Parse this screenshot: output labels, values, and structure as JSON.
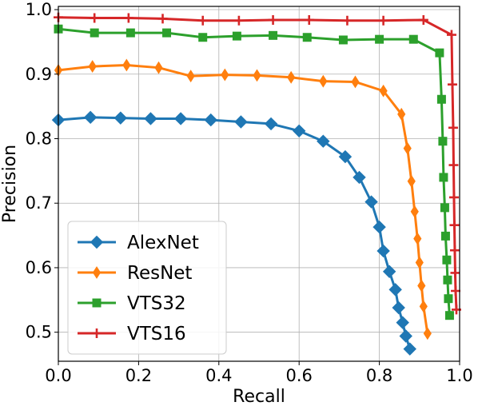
{
  "chart_data": {
    "type": "line",
    "title": "",
    "xlabel": "Recall",
    "ylabel": "Precision",
    "xlim": [
      0.0,
      1.0
    ],
    "ylim": [
      0.455,
      1.005
    ],
    "xticks": [
      0.0,
      0.2,
      0.4,
      0.6,
      0.8,
      1.0
    ],
    "xtick_labels": [
      "0.0",
      "0.2",
      "0.4",
      "0.6",
      "0.8",
      "1.0"
    ],
    "yticks": [
      0.5,
      0.6,
      0.7,
      0.8,
      0.9,
      1.0
    ],
    "ytick_labels": [
      "0.5",
      "0.6",
      "0.7",
      "0.8",
      "0.9",
      "1.0"
    ],
    "grid": true,
    "legend_position": "lower-left",
    "series": [
      {
        "name": "AlexNet",
        "color": "#1f77b4",
        "marker": "diamond",
        "points": [
          [
            0.0,
            0.829
          ],
          [
            0.08,
            0.833
          ],
          [
            0.155,
            0.832
          ],
          [
            0.23,
            0.831
          ],
          [
            0.305,
            0.831
          ],
          [
            0.38,
            0.829
          ],
          [
            0.455,
            0.826
          ],
          [
            0.53,
            0.823
          ],
          [
            0.6,
            0.812
          ],
          [
            0.66,
            0.796
          ],
          [
            0.715,
            0.772
          ],
          [
            0.75,
            0.74
          ],
          [
            0.78,
            0.702
          ],
          [
            0.8,
            0.663
          ],
          [
            0.81,
            0.626
          ],
          [
            0.825,
            0.594
          ],
          [
            0.84,
            0.566
          ],
          [
            0.848,
            0.538
          ],
          [
            0.858,
            0.515
          ],
          [
            0.866,
            0.494
          ],
          [
            0.876,
            0.474
          ]
        ]
      },
      {
        "name": "ResNet",
        "color": "#ff7f0e",
        "marker": "thin-diamond",
        "points": [
          [
            0.0,
            0.906
          ],
          [
            0.085,
            0.912
          ],
          [
            0.17,
            0.914
          ],
          [
            0.25,
            0.91
          ],
          [
            0.33,
            0.897
          ],
          [
            0.415,
            0.899
          ],
          [
            0.495,
            0.898
          ],
          [
            0.58,
            0.895
          ],
          [
            0.66,
            0.889
          ],
          [
            0.74,
            0.888
          ],
          [
            0.81,
            0.874
          ],
          [
            0.855,
            0.838
          ],
          [
            0.87,
            0.785
          ],
          [
            0.88,
            0.734
          ],
          [
            0.888,
            0.687
          ],
          [
            0.895,
            0.645
          ],
          [
            0.9,
            0.608
          ],
          [
            0.905,
            0.572
          ],
          [
            0.91,
            0.54
          ],
          [
            0.92,
            0.498
          ]
        ]
      },
      {
        "name": "VTS32",
        "color": "#2ca02c",
        "marker": "square",
        "points": [
          [
            0.0,
            0.97
          ],
          [
            0.09,
            0.964
          ],
          [
            0.18,
            0.964
          ],
          [
            0.27,
            0.964
          ],
          [
            0.36,
            0.957
          ],
          [
            0.445,
            0.959
          ],
          [
            0.535,
            0.96
          ],
          [
            0.62,
            0.957
          ],
          [
            0.71,
            0.953
          ],
          [
            0.8,
            0.954
          ],
          [
            0.885,
            0.954
          ],
          [
            0.95,
            0.933
          ],
          [
            0.955,
            0.861
          ],
          [
            0.958,
            0.796
          ],
          [
            0.96,
            0.74
          ],
          [
            0.963,
            0.693
          ],
          [
            0.965,
            0.649
          ],
          [
            0.968,
            0.612
          ],
          [
            0.97,
            0.581
          ],
          [
            0.972,
            0.552
          ],
          [
            0.975,
            0.526
          ]
        ]
      },
      {
        "name": "VTS16",
        "color": "#d62728",
        "marker": "plus",
        "points": [
          [
            0.0,
            0.988
          ],
          [
            0.09,
            0.987
          ],
          [
            0.175,
            0.987
          ],
          [
            0.26,
            0.986
          ],
          [
            0.36,
            0.983
          ],
          [
            0.45,
            0.983
          ],
          [
            0.535,
            0.984
          ],
          [
            0.625,
            0.984
          ],
          [
            0.72,
            0.983
          ],
          [
            0.81,
            0.983
          ],
          [
            0.91,
            0.984
          ],
          [
            0.98,
            0.961
          ],
          [
            0.982,
            0.884
          ],
          [
            0.984,
            0.817
          ],
          [
            0.985,
            0.759
          ],
          [
            0.986,
            0.709
          ],
          [
            0.987,
            0.666
          ],
          [
            0.988,
            0.627
          ],
          [
            0.989,
            0.592
          ],
          [
            0.99,
            0.564
          ],
          [
            0.992,
            0.535
          ]
        ]
      }
    ]
  }
}
